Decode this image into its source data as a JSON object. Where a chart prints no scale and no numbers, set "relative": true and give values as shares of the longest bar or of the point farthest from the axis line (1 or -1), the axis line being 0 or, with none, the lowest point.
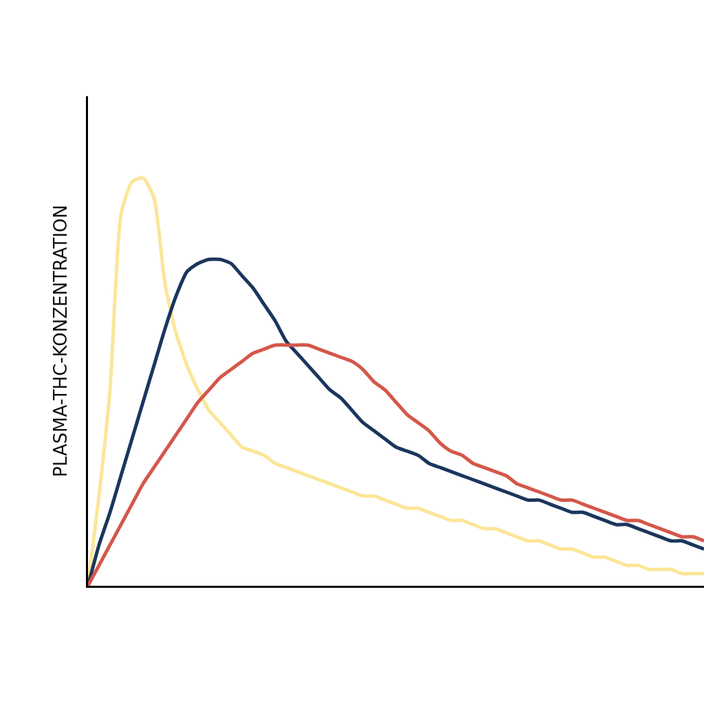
{
  "chart_data": {
    "type": "line",
    "relative": true,
    "ylabel": "PLASMA-THC-KONZENTRATION",
    "categories": [
      null,
      null,
      null,
      null,
      null,
      null,
      null,
      null,
      null,
      null,
      null,
      null,
      null,
      null,
      null,
      null,
      null,
      null,
      null,
      null,
      null,
      null,
      null,
      null,
      null,
      null,
      null,
      null,
      null,
      null,
      null,
      null,
      null,
      null,
      null,
      null,
      null,
      null,
      null,
      null,
      null,
      null,
      null,
      null,
      null,
      null,
      null,
      null,
      null,
      null,
      null,
      null,
      null,
      null,
      null,
      null,
      null
    ],
    "series": [
      {
        "color": "#fbe699",
        "values": [
          0,
          0.22,
          0.48,
          0.91,
          0.99,
          1.0,
          0.95,
          0.74,
          0.62,
          0.54,
          0.48,
          0.43,
          0.4,
          0.37,
          0.34,
          0.33,
          0.32,
          0.3,
          0.29,
          0.28,
          0.27,
          0.26,
          0.25,
          0.24,
          0.23,
          0.22,
          0.22,
          0.21,
          0.2,
          0.19,
          0.19,
          0.18,
          0.17,
          0.16,
          0.16,
          0.15,
          0.14,
          0.14,
          0.13,
          0.12,
          0.11,
          0.11,
          0.1,
          0.09,
          0.09,
          0.08,
          0.07,
          0.07,
          0.06,
          0.05,
          0.05,
          0.04,
          0.04,
          0.04,
          0.03,
          0.03,
          0.03
        ]
      },
      {
        "color": "#1b365d",
        "values": [
          0,
          0.1,
          0.18,
          0.27,
          0.36,
          0.45,
          0.54,
          0.63,
          0.71,
          0.77,
          0.79,
          0.8,
          0.8,
          0.79,
          0.76,
          0.73,
          0.69,
          0.65,
          0.6,
          0.57,
          0.54,
          0.51,
          0.48,
          0.46,
          0.43,
          0.4,
          0.38,
          0.36,
          0.34,
          0.33,
          0.32,
          0.3,
          0.29,
          0.28,
          0.27,
          0.26,
          0.25,
          0.24,
          0.23,
          0.22,
          0.21,
          0.21,
          0.2,
          0.19,
          0.18,
          0.18,
          0.17,
          0.16,
          0.15,
          0.15,
          0.14,
          0.13,
          0.12,
          0.11,
          0.11,
          0.1,
          0.09
        ]
      },
      {
        "color": "#d4574a",
        "values": [
          0,
          0.05,
          0.1,
          0.15,
          0.2,
          0.25,
          0.29,
          0.33,
          0.37,
          0.41,
          0.45,
          0.48,
          0.51,
          0.53,
          0.55,
          0.57,
          0.58,
          0.59,
          0.59,
          0.59,
          0.59,
          0.58,
          0.57,
          0.56,
          0.55,
          0.53,
          0.5,
          0.48,
          0.45,
          0.42,
          0.4,
          0.38,
          0.35,
          0.33,
          0.32,
          0.3,
          0.29,
          0.28,
          0.27,
          0.25,
          0.24,
          0.23,
          0.22,
          0.21,
          0.21,
          0.2,
          0.19,
          0.18,
          0.17,
          0.16,
          0.16,
          0.15,
          0.14,
          0.13,
          0.12,
          0.12,
          0.11
        ]
      }
    ]
  }
}
